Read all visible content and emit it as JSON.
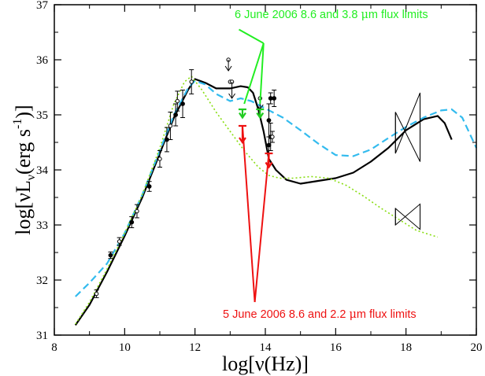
{
  "chart_data": {
    "type": "line",
    "xlabel": "log[ν(Hz)]",
    "ylabel": "log[νL",
    "ylabel_sub": "ν",
    "ylabel_unit": "(erg s",
    "ylabel_sup": "-1",
    "ylabel_close": ")]",
    "xlim": [
      8,
      20
    ],
    "ylim": [
      31,
      37
    ],
    "x_ticks": [
      8,
      10,
      12,
      14,
      16,
      18,
      20
    ],
    "x_tick_labels": [
      "8",
      "10",
      "12",
      "14",
      "16",
      "18",
      "20"
    ],
    "y_ticks": [
      31,
      32,
      33,
      34,
      35,
      36,
      37
    ],
    "y_tick_labels": [
      "31",
      "32",
      "33",
      "34",
      "35",
      "36",
      "37"
    ],
    "grid": false,
    "series": [
      {
        "style": "solid",
        "color": "#000000",
        "x": [
          8.6,
          9.0,
          9.5,
          10.0,
          10.5,
          11.0,
          11.4,
          11.8,
          12.0,
          12.3,
          12.6,
          13.0,
          13.3,
          13.5,
          13.65,
          13.8,
          13.95,
          14.1,
          14.3,
          14.6,
          15.0,
          15.5,
          16.0,
          16.5,
          17.0,
          17.5,
          18.0,
          18.5,
          18.9,
          19.1,
          19.3
        ],
        "y": [
          31.18,
          31.55,
          32.15,
          32.8,
          33.5,
          34.3,
          34.95,
          35.45,
          35.65,
          35.58,
          35.48,
          35.48,
          35.52,
          35.5,
          35.4,
          35.1,
          34.7,
          34.2,
          34.0,
          33.82,
          33.75,
          33.8,
          33.85,
          33.95,
          34.15,
          34.4,
          34.72,
          34.92,
          34.98,
          34.85,
          34.55
        ]
      },
      {
        "style": "dashed",
        "color": "#33bbee",
        "x": [
          8.6,
          9.0,
          9.5,
          10.0,
          10.5,
          11.0,
          11.4,
          11.8,
          12.0,
          12.3,
          12.6,
          13.0,
          13.3,
          13.6,
          13.9,
          14.2,
          14.5,
          15.0,
          15.5,
          16.0,
          16.5,
          17.0,
          17.5,
          18.0,
          18.5,
          19.0,
          19.3,
          19.6,
          20.0
        ],
        "y": [
          31.7,
          31.95,
          32.3,
          32.85,
          33.55,
          34.35,
          35.0,
          35.48,
          35.62,
          35.55,
          35.38,
          35.25,
          35.3,
          35.25,
          35.15,
          35.05,
          34.95,
          34.72,
          34.48,
          34.27,
          34.25,
          34.37,
          34.58,
          34.78,
          34.95,
          35.08,
          35.1,
          34.95,
          34.4
        ]
      },
      {
        "style": "dotted",
        "color": "#88dd11",
        "x": [
          8.6,
          9.0,
          9.5,
          10.0,
          10.5,
          11.0,
          11.4,
          11.7,
          11.9,
          12.2,
          12.6,
          13.0,
          13.4,
          13.8,
          14.1,
          14.4,
          14.8,
          15.3,
          15.8,
          16.3,
          16.8,
          17.3,
          17.8,
          18.3,
          18.9
        ],
        "y": [
          31.2,
          31.6,
          32.2,
          32.85,
          33.55,
          34.4,
          35.2,
          35.6,
          35.7,
          35.45,
          35.05,
          34.7,
          34.35,
          34.05,
          33.9,
          33.85,
          33.85,
          33.88,
          33.85,
          33.72,
          33.52,
          33.3,
          33.1,
          32.9,
          32.78
        ]
      }
    ],
    "data_points": {
      "x": [
        9.2,
        9.6,
        9.85,
        10.2,
        10.35,
        10.7,
        11.0,
        11.2,
        11.3,
        11.45,
        11.5,
        11.65,
        11.9
      ],
      "y": [
        31.75,
        32.45,
        32.7,
        33.05,
        33.25,
        33.7,
        34.2,
        34.55,
        34.8,
        35.0,
        35.25,
        35.2,
        35.6
      ],
      "yerr": [
        0.07,
        0.06,
        0.07,
        0.1,
        0.12,
        0.09,
        0.15,
        0.22,
        0.25,
        0.2,
        0.18,
        0.25,
        0.22
      ]
    },
    "data_points_near14": [
      {
        "x": 13.0,
        "y": 35.6,
        "yerr": 0,
        "open": true
      },
      {
        "x": 14.1,
        "y": 34.9,
        "yerr": 0.3,
        "open": false
      },
      {
        "x": 14.15,
        "y": 34.6,
        "yerr": 0.25,
        "open": false
      },
      {
        "x": 14.1,
        "y": 34.45,
        "yerr": 0.15,
        "open": false
      },
      {
        "x": 14.2,
        "y": 34.6,
        "yerr": 0.1,
        "open": true
      },
      {
        "x": 14.15,
        "y": 35.3,
        "yerr": 0.1,
        "open": false
      },
      {
        "x": 14.25,
        "y": 35.3,
        "yerr": 0.15,
        "open": false
      }
    ],
    "upper_limits": [
      {
        "x": 12.95,
        "y": 36.0,
        "y_end": 35.8,
        "color": "#000000"
      },
      {
        "x": 13.05,
        "y": 35.6,
        "y_end": 35.3,
        "color": "#000000"
      },
      {
        "x": 13.85,
        "y": 35.3,
        "y_end": 35.1,
        "color": "#000000"
      },
      {
        "x": 13.35,
        "y": 35.1,
        "y_end": 34.95,
        "color": "#22cc22"
      },
      {
        "x": 13.85,
        "y": 35.1,
        "y_end": 34.95,
        "color": "#22cc22"
      },
      {
        "x": 13.35,
        "y": 34.8,
        "y_end": 34.5,
        "color": "#ee1111"
      },
      {
        "x": 14.1,
        "y": 34.3,
        "y_end": 34.05,
        "color": "#ee1111"
      }
    ],
    "bowties": [
      {
        "x0": 17.7,
        "x1": 18.4,
        "left": [
          34.3,
          35.05
        ],
        "right": [
          34.15,
          35.4
        ]
      },
      {
        "x0": 17.7,
        "x1": 18.4,
        "left": [
          33.0,
          33.3
        ],
        "right": [
          32.92,
          33.38
        ]
      }
    ],
    "annotations": [
      {
        "id": "green",
        "text": "6 June 2006 8.6 and 3.8 ",
        "mu": "μ",
        "tail": "m flux limits",
        "color": "#22ee22",
        "text_x": 11.6,
        "text_y": 36.55,
        "vertex": [
          13.95,
          36.3
        ],
        "targets": [
          [
            13.4,
            35.2
          ],
          [
            13.85,
            35.2
          ]
        ]
      },
      {
        "id": "red",
        "text": "5 June 2006 8.6 and 2.2 ",
        "mu": "μ",
        "tail": "m flux limits",
        "color": "#ee1111",
        "text_x": 11.2,
        "text_y": 31.3,
        "vertex": [
          13.7,
          31.6
        ],
        "targets": [
          [
            13.35,
            34.8
          ],
          [
            14.1,
            34.3
          ]
        ]
      }
    ]
  }
}
